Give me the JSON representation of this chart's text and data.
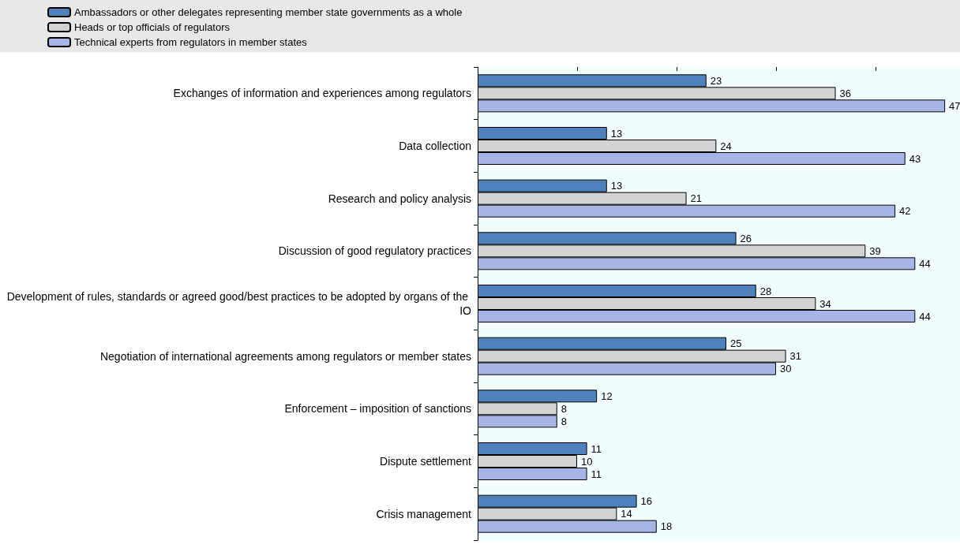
{
  "chart_data": {
    "type": "bar",
    "orientation": "horizontal",
    "legend": "top left",
    "grid": false,
    "data_labels": true,
    "tick_labels": "y",
    "categories": [
      "Exchanges of information and experiences among regulators",
      "Data collection",
      "Research and policy analysis",
      "Discussion of good regulatory practices",
      "Development of rules, standards or agreed good/best practices to be adopted by organs of the IO",
      "Negotiation of international agreements among regulators or member states",
      "Enforcement – imposition of sanctions",
      "Dispute settlement",
      "Crisis management"
    ],
    "xlim": [
      0,
      48.5
    ],
    "xticks": [
      {
        "value": 0,
        "label": null
      },
      {
        "value": 10,
        "label": null
      },
      {
        "value": 20,
        "label": null
      },
      {
        "value": 30,
        "label": null
      },
      {
        "value": 40,
        "label": null
      }
    ],
    "series": [
      {
        "name": "Ambassadors or other delegates representing member state governments as a whole",
        "color": "#4f81bd",
        "values": [
          23,
          13,
          13,
          26,
          28,
          25,
          12,
          11,
          16
        ]
      },
      {
        "name": "Heads or top officials of regulators",
        "color": "#d3d3d3",
        "values": [
          36,
          24,
          21,
          39,
          34,
          31,
          8,
          10,
          14
        ]
      },
      {
        "name": "Technical experts from regulators in member states",
        "color": "#a7b5e6",
        "values": [
          47,
          43,
          42,
          44,
          44,
          30,
          8,
          11,
          18
        ]
      }
    ]
  }
}
